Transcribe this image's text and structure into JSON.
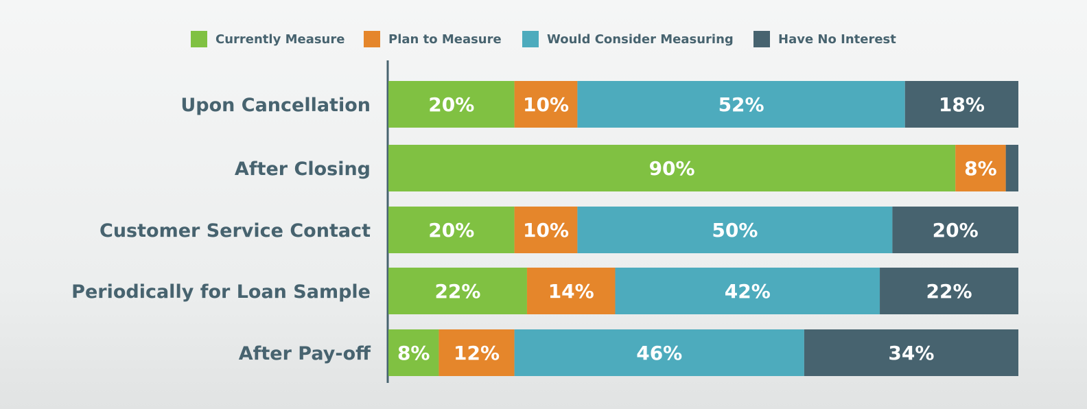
{
  "chart_data": {
    "type": "bar",
    "orientation": "horizontal",
    "stacked": true,
    "categories": [
      "Upon Cancellation",
      "After Closing",
      "Customer Service Contact",
      "Periodically for Loan Sample",
      "After Pay-off"
    ],
    "series": [
      {
        "name": "Currently Measure",
        "color": "#80c142",
        "values": [
          20,
          90,
          20,
          22,
          8
        ]
      },
      {
        "name": "Plan to Measure",
        "color": "#e5862b",
        "values": [
          10,
          8,
          10,
          14,
          12
        ]
      },
      {
        "name": "Would Consider Measuring",
        "color": "#4dabbd",
        "values": [
          52,
          0,
          50,
          42,
          46
        ]
      },
      {
        "name": "Have No Interest",
        "color": "#47636f",
        "values": [
          18,
          2,
          20,
          22,
          34
        ]
      }
    ],
    "labels": [
      [
        "20%",
        "10%",
        "52%",
        "18%"
      ],
      [
        "90%",
        "8%",
        "",
        ""
      ],
      [
        "20%",
        "10%",
        "50%",
        "20%"
      ],
      [
        "22%",
        "14%",
        "42%",
        "22%"
      ],
      [
        "8%",
        "12%",
        "46%",
        "34%"
      ]
    ],
    "xlim": [
      0,
      100
    ],
    "legend_position": "top",
    "grid": false
  }
}
